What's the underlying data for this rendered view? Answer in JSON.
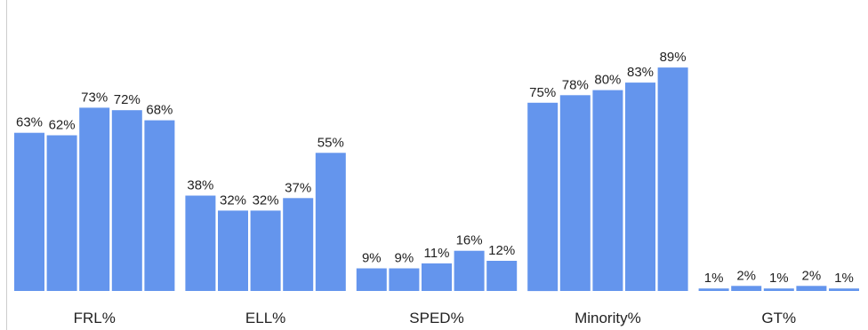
{
  "chart_data": {
    "type": "bar",
    "categories": [
      "FRL%",
      "ELL%",
      "SPED%",
      "Minority%",
      "GT%"
    ],
    "series": [
      {
        "values": [
          63,
          38,
          9,
          75,
          1
        ]
      },
      {
        "values": [
          62,
          32,
          9,
          78,
          2
        ]
      },
      {
        "values": [
          73,
          32,
          11,
          80,
          1
        ]
      },
      {
        "values": [
          72,
          37,
          16,
          83,
          2
        ]
      },
      {
        "values": [
          68,
          55,
          12,
          89,
          1
        ]
      }
    ],
    "data_labels": [
      [
        "63%",
        "62%",
        "73%",
        "72%",
        "68%"
      ],
      [
        "38%",
        "32%",
        "32%",
        "37%",
        "55%"
      ],
      [
        "9%",
        "9%",
        "11%",
        "16%",
        "12%"
      ],
      [
        "75%",
        "78%",
        "80%",
        "83%",
        "89%"
      ],
      [
        "1%",
        "2%",
        "1%",
        "2%",
        "1%"
      ]
    ],
    "ylim": [
      0,
      100
    ],
    "grid": false,
    "legend": "none",
    "bar_color": "#6495ED",
    "axis_color": "#cccccc",
    "text_color": "#222222"
  }
}
